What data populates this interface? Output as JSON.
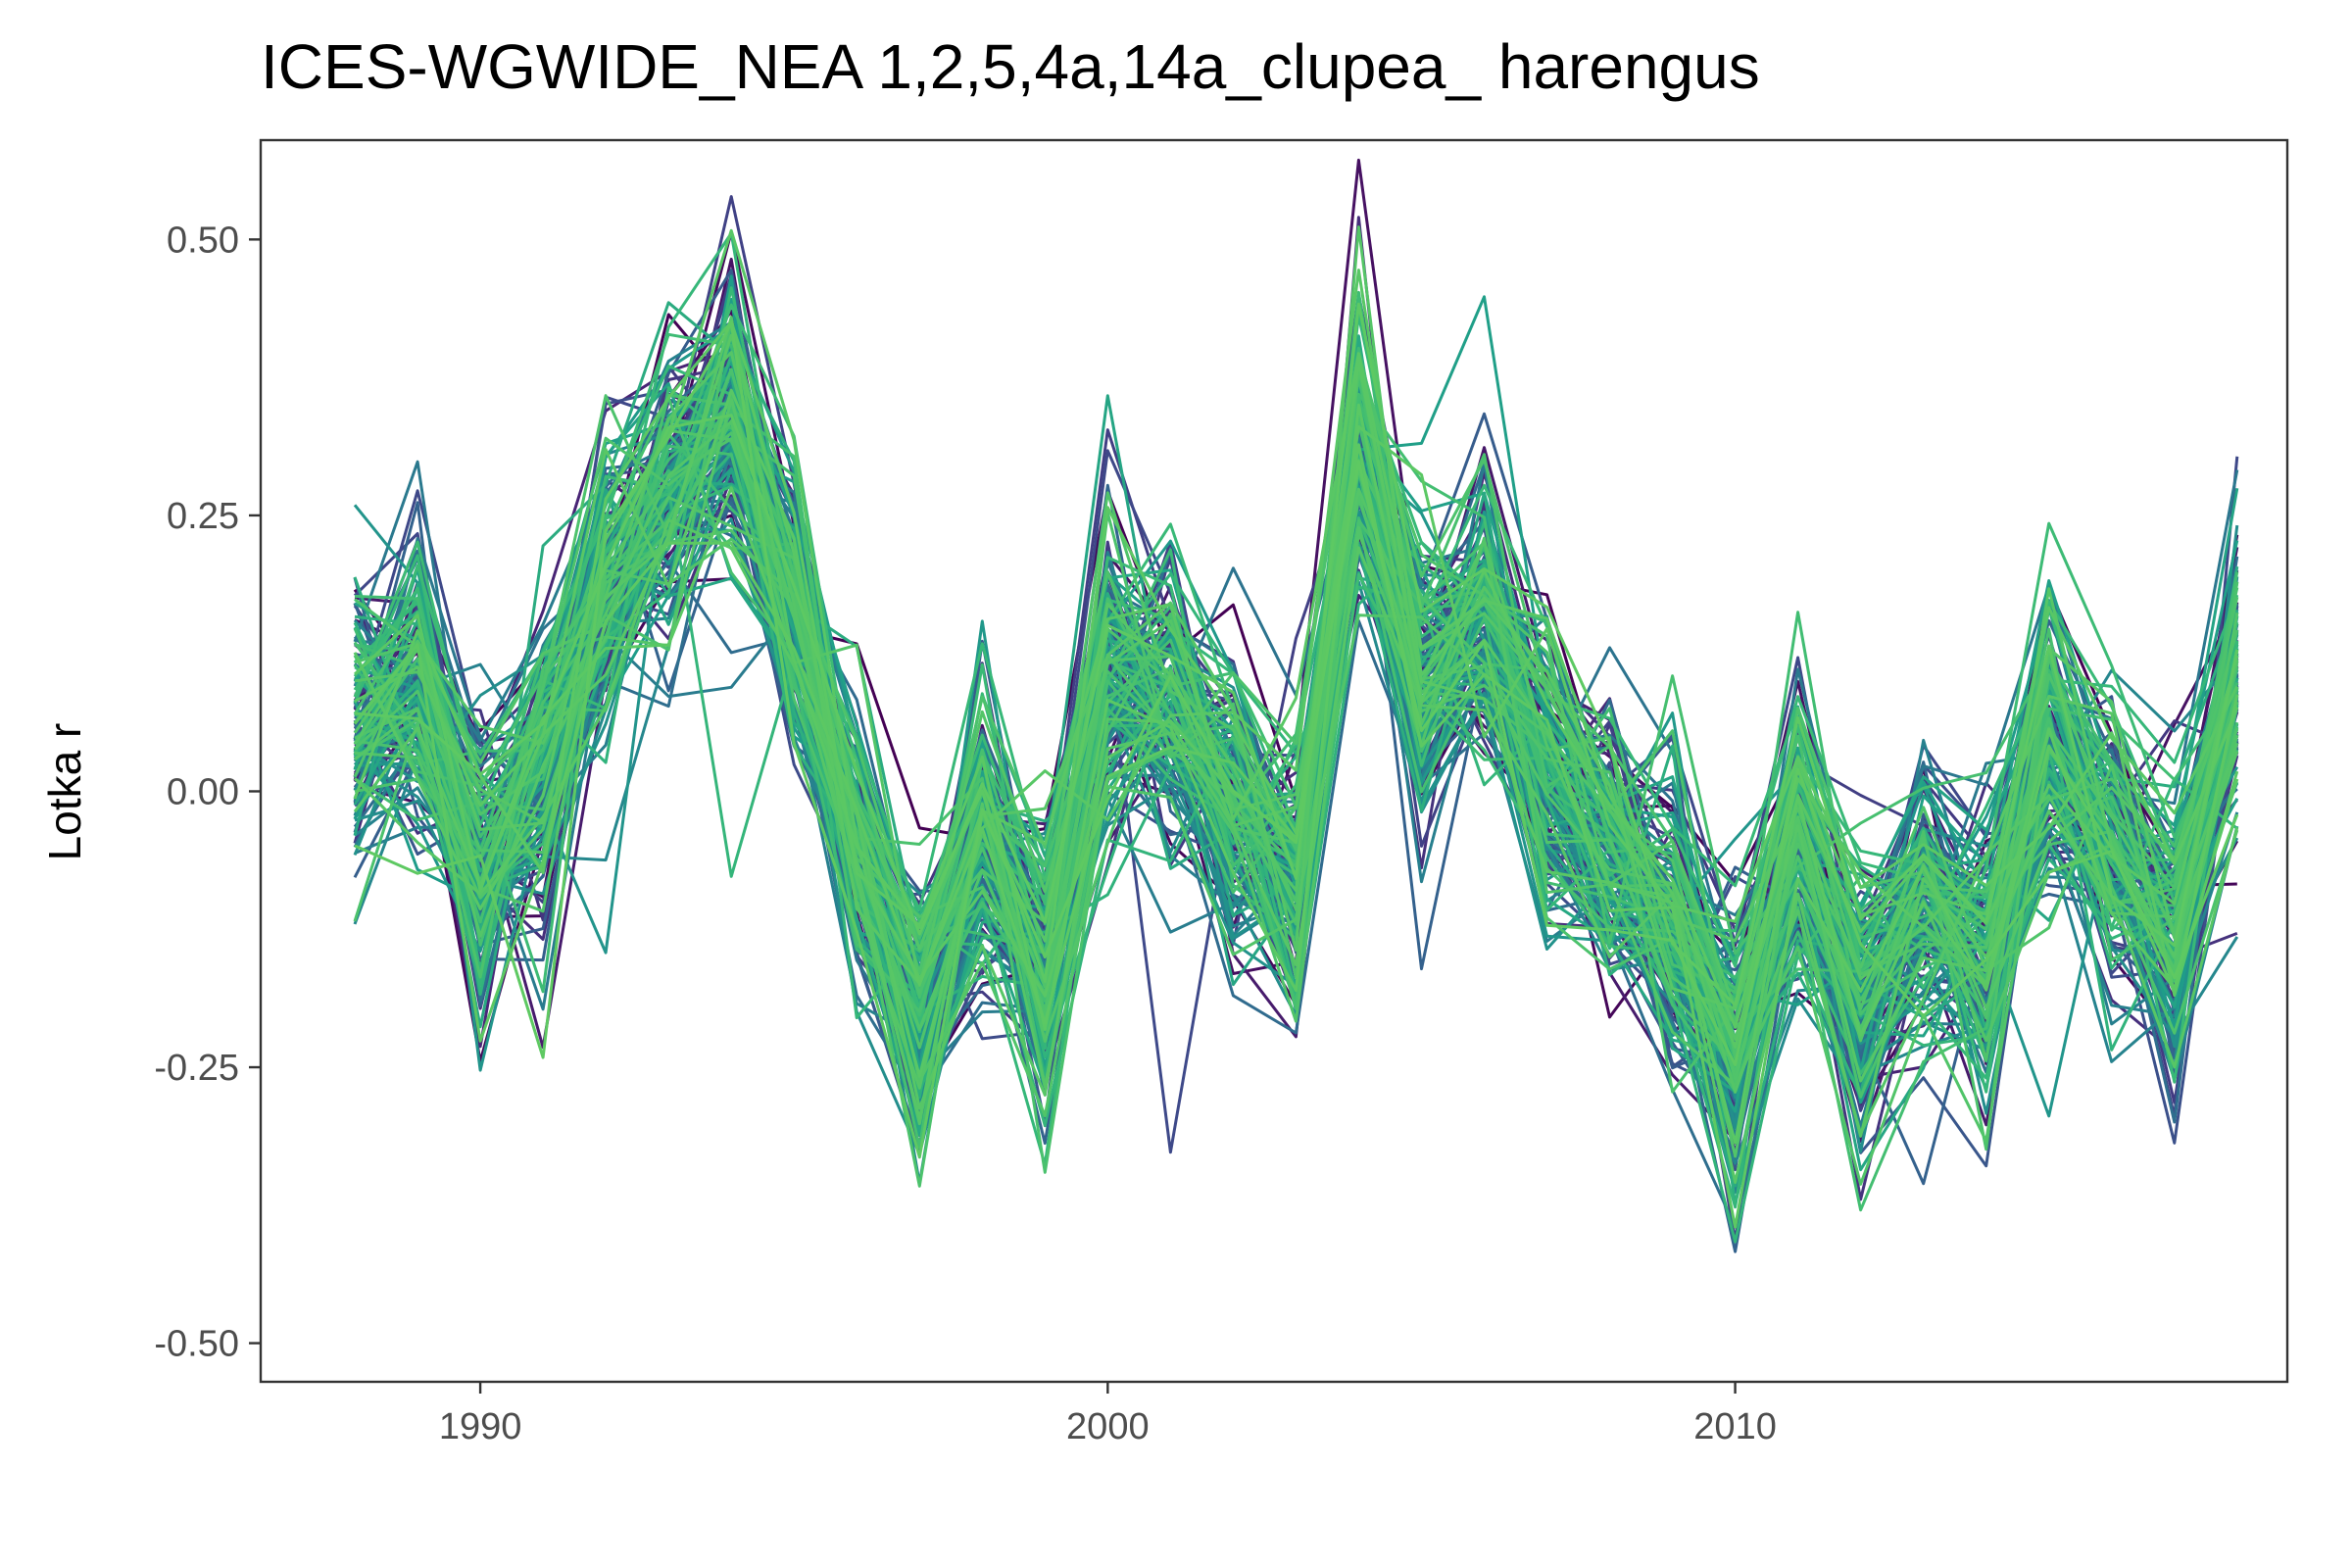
{
  "chart_data": {
    "type": "line",
    "title": "ICES-WGWIDE_NEA 1,2,5,4a,14a_clupea_ harengus",
    "xlabel": "",
    "ylabel": "Lotka r",
    "xlim": [
      1986.5,
      2018.8
    ],
    "ylim": [
      -0.535,
      0.59
    ],
    "x_ticks": [
      1990,
      2000,
      2010
    ],
    "x_tick_labels": [
      "1990",
      "2000",
      "2010"
    ],
    "y_ticks": [
      0.5,
      0.25,
      0.0,
      -0.25,
      -0.5
    ],
    "y_tick_labels": [
      "0.50",
      "0.25",
      "0.00",
      "-0.25",
      "-0.50"
    ],
    "grid": false,
    "legend": "none",
    "palette": [
      "#440154",
      "#482878",
      "#3e4989",
      "#31688e",
      "#26828e",
      "#1f9e89",
      "#35b779",
      "#4cc26c",
      "#5ec962"
    ],
    "x": [
      1988,
      1989,
      1990,
      1991,
      1992,
      1993,
      1994,
      1995,
      1996,
      1997,
      1998,
      1999,
      2000,
      2001,
      2002,
      2003,
      2004,
      2005,
      2006,
      2007,
      2008,
      2009,
      2010,
      2011,
      2012,
      2013,
      2014,
      2015,
      2016,
      2017,
      2018
    ],
    "central_series": [
      0.05,
      0.09,
      -0.07,
      0.02,
      0.18,
      0.27,
      0.33,
      0.15,
      -0.05,
      -0.21,
      -0.04,
      -0.15,
      0.1,
      0.07,
      -0.02,
      -0.08,
      0.3,
      0.1,
      0.16,
      0.02,
      -0.05,
      -0.12,
      -0.25,
      -0.05,
      -0.2,
      -0.1,
      -0.15,
      0.05,
      -0.05,
      -0.13,
      0.1
    ],
    "ensemble_count": 160
  }
}
